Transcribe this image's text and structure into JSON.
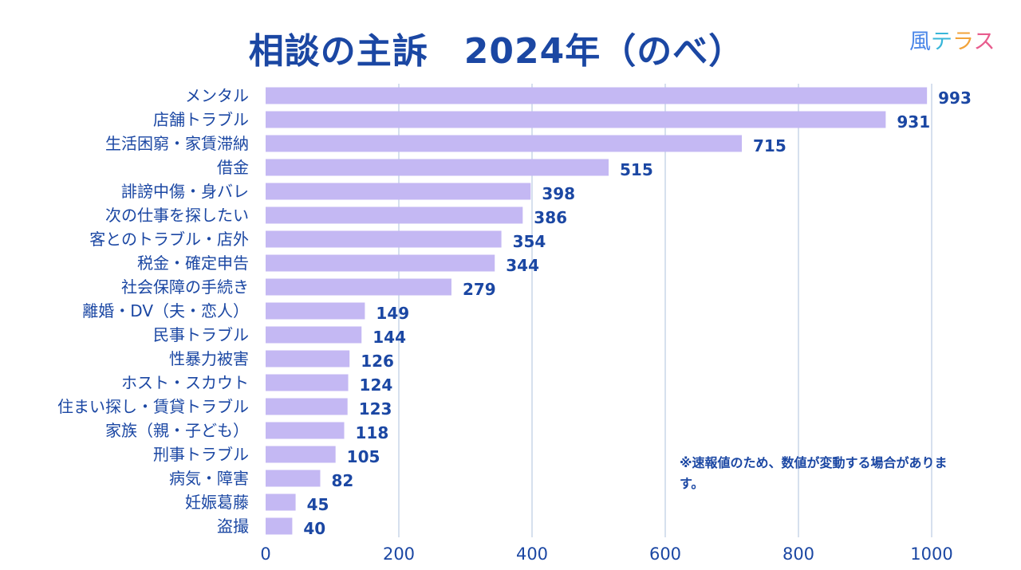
{
  "title": "相談の主訴　2024年（のべ）",
  "brand": {
    "logo_chars": [
      "風",
      "テ",
      "ラ",
      "ス"
    ],
    "colors": [
      "#4a86e8",
      "#38b6d9",
      "#f2a33a",
      "#e85c8d"
    ]
  },
  "note": "※速報値のため、数値が変動する場合があります。",
  "colors": {
    "bar": "#c4b8f3",
    "text": "#1b47a3",
    "grid": "#c9d6e8"
  },
  "chart_data": {
    "type": "bar",
    "orientation": "horizontal",
    "categories": [
      "メンタル",
      "店舗トラブル",
      "生活困窮・家賃滞納",
      "借金",
      "誹謗中傷・身バレ",
      "次の仕事を探したい",
      "客とのトラブル・店外",
      "税金・確定申告",
      "社会保障の手続き",
      "離婚・DV（夫・恋人）",
      "民事トラブル",
      "性暴力被害",
      "ホスト・スカウト",
      "住まい探し・賃貸トラブル",
      "家族（親・子ども）",
      "刑事トラブル",
      "病気・障害",
      "妊娠葛藤",
      "盗撮"
    ],
    "values": [
      993,
      931,
      715,
      515,
      398,
      386,
      354,
      344,
      279,
      149,
      144,
      126,
      124,
      123,
      118,
      105,
      82,
      45,
      40
    ],
    "xlim": [
      0,
      1000
    ],
    "xticks": [
      0,
      200,
      400,
      600,
      800,
      1000
    ],
    "grid": "vertical",
    "xlabel": "",
    "ylabel": ""
  }
}
